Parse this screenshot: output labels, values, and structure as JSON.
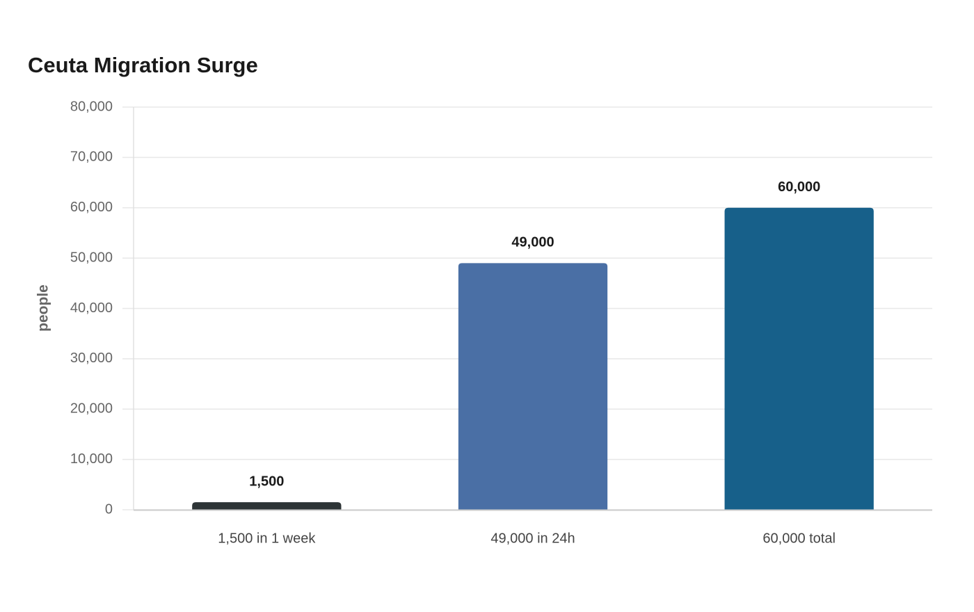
{
  "chart_data": {
    "type": "bar",
    "title": "Ceuta Migration Surge",
    "y_label": "people",
    "categories": [
      "1,500 in 1 week",
      "49,000 in 24h",
      "60,000 total"
    ],
    "values": [
      1500,
      49000,
      60000
    ],
    "value_labels": [
      "1,500",
      "49,000",
      "60,000"
    ],
    "colors": [
      "#2d3436",
      "#4a6fa5",
      "#17608a"
    ],
    "ylim": [
      0,
      80000
    ],
    "yticks": [
      0,
      {
        "value": 10000,
        "label": "10,000"
      },
      {
        "value": 20000,
        "label": "20,000"
      },
      {
        "value": 30000,
        "label": "30,000"
      },
      {
        "value": 40000,
        "label": "40,000"
      },
      {
        "value": 50000,
        "label": "50,000"
      },
      {
        "value": 60000,
        "label": "60,000"
      },
      {
        "value": 70000,
        "label": "70,000"
      },
      {
        "value": 80000,
        "label": "80,000"
      }
    ],
    "grid": true
  }
}
